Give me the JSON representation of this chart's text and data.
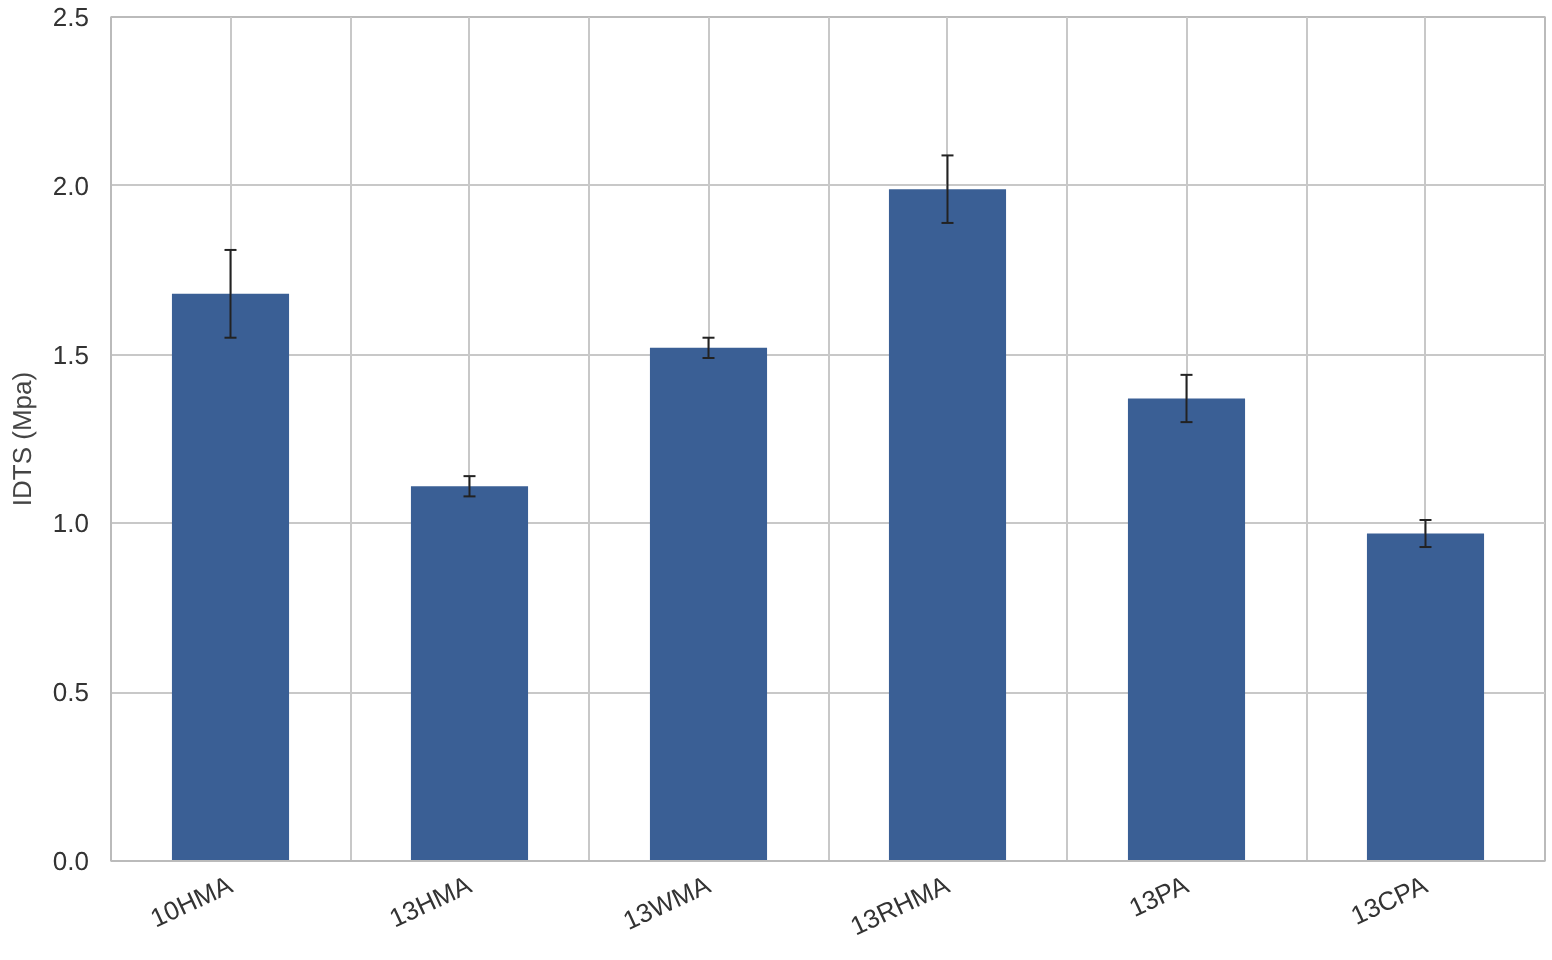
{
  "chart_data": {
    "type": "bar",
    "ylabel": "IDTS (Mpa)",
    "categories": [
      "10HMA",
      "13HMA",
      "13WMA",
      "13RHMA",
      "13PA",
      "13CPA"
    ],
    "values": [
      1.68,
      1.11,
      1.52,
      1.99,
      1.37,
      0.97
    ],
    "errors": [
      0.13,
      0.03,
      0.03,
      0.1,
      0.07,
      0.04
    ],
    "color": "#3a5f95",
    "ylim": [
      0,
      2.5
    ],
    "yticks": [
      {
        "value": 0,
        "label": "0.0"
      },
      0.5,
      {
        "value": 1,
        "label": "1.0"
      },
      1.5,
      {
        "value": 2,
        "label": "2.0"
      },
      2.5
    ],
    "grid": true
  }
}
